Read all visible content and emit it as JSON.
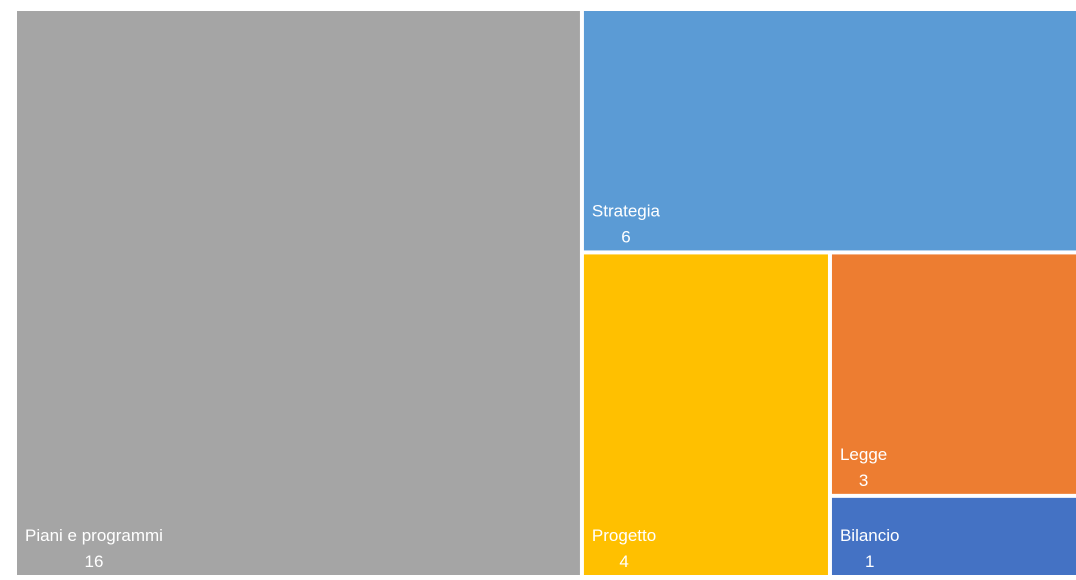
{
  "chart_data": {
    "type": "treemap",
    "categories": [
      "Piani e programmi",
      "Strategia",
      "Progetto",
      "Legge",
      "Bilancio"
    ],
    "values": [
      16,
      6,
      4,
      3,
      1
    ],
    "colors": [
      "#a5a5a5",
      "#5b9bd5",
      "#ffc000",
      "#ed7d31",
      "#4472c4"
    ]
  }
}
